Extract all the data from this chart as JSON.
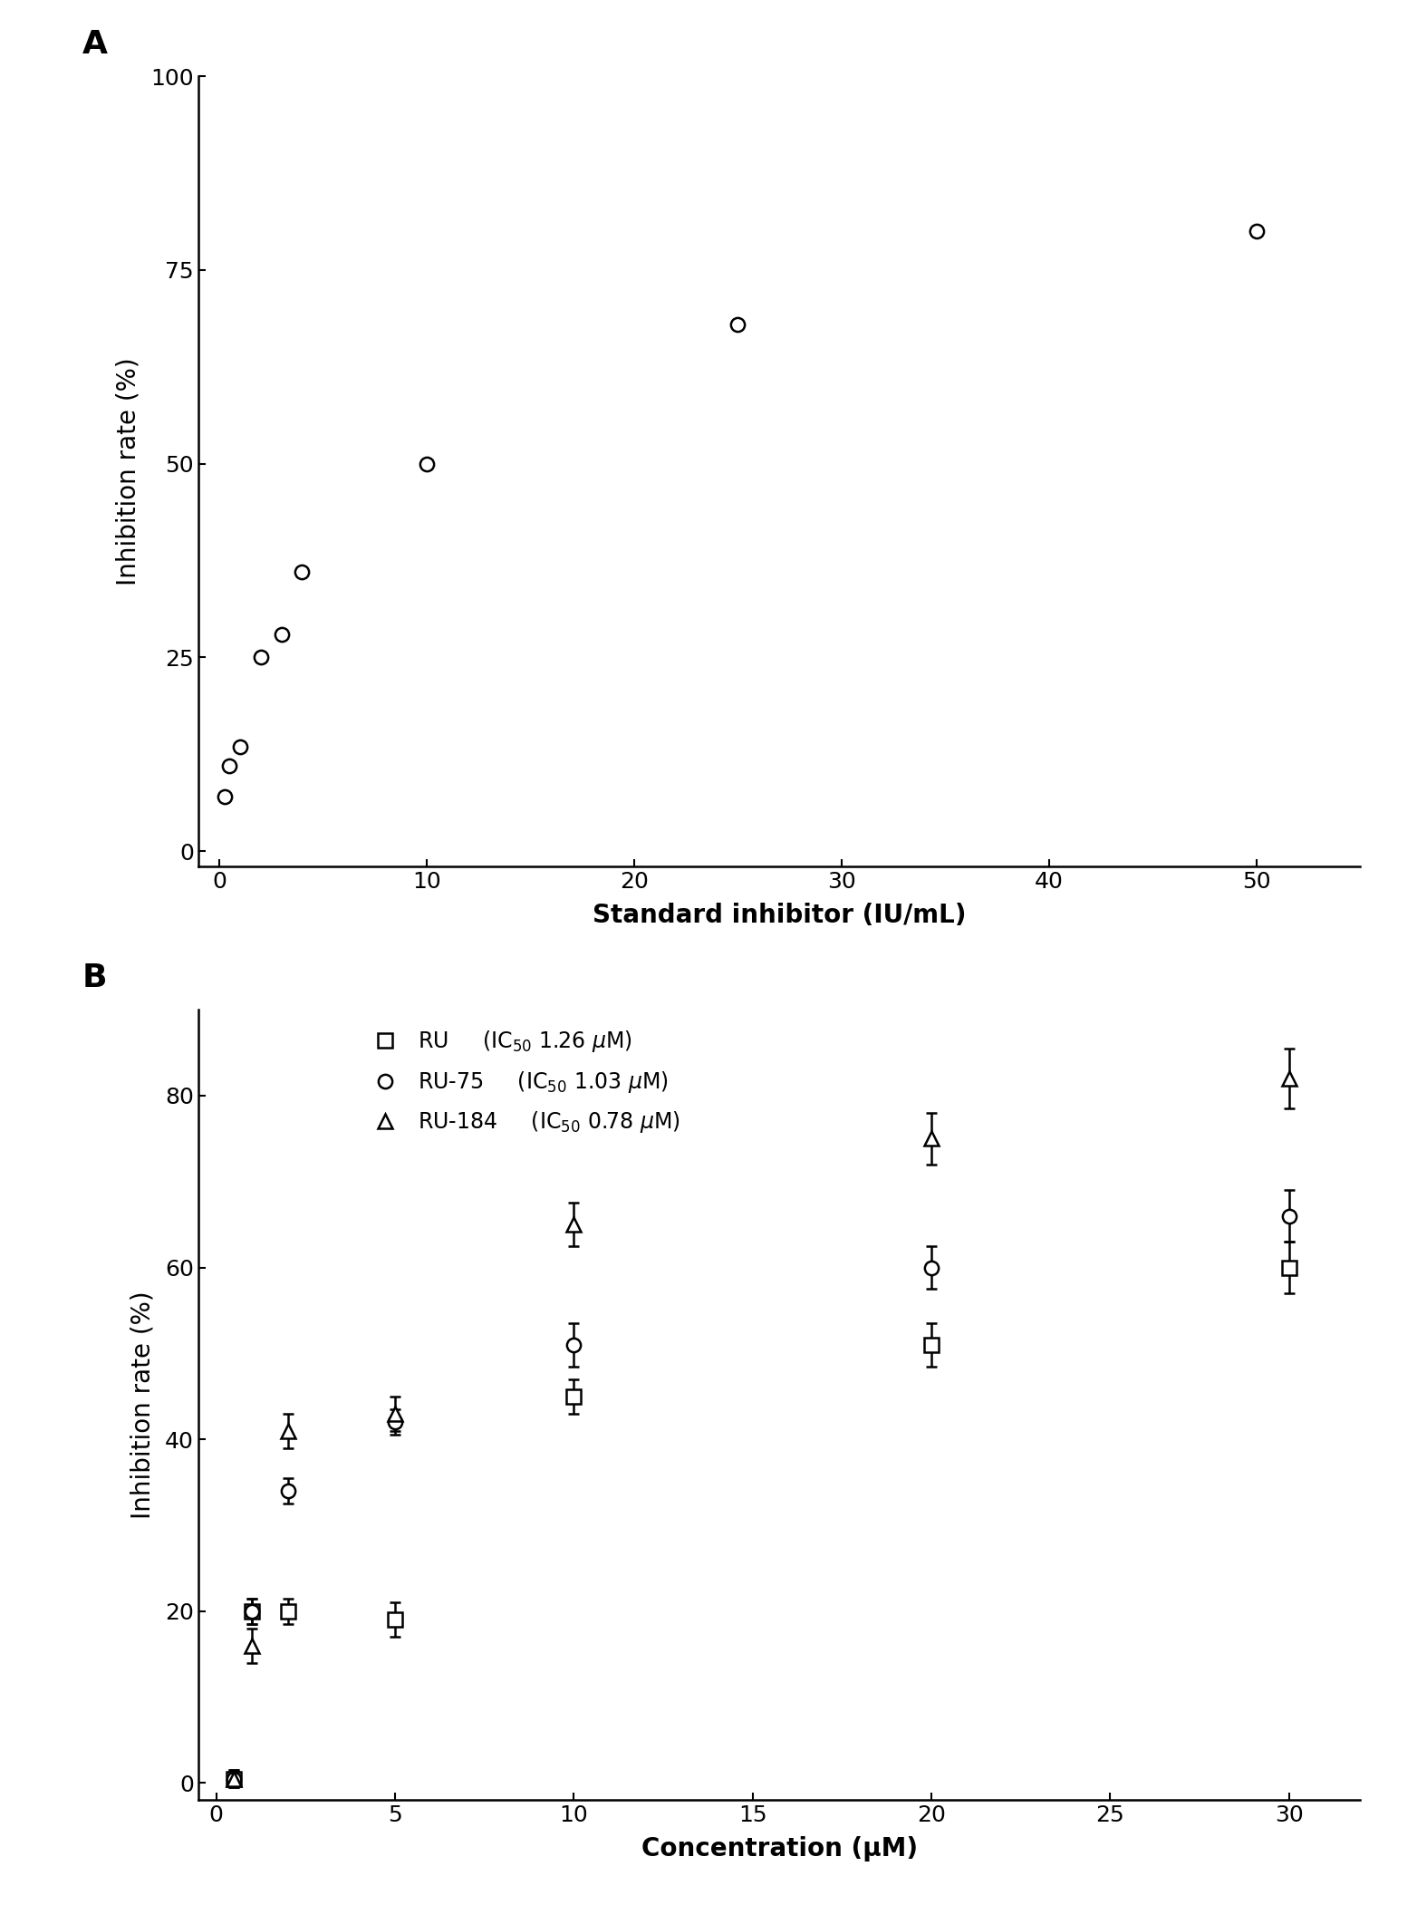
{
  "panel_A": {
    "label": "A",
    "xlabel": "Standard inhibitor (IU/mL)",
    "ylabel": "Inhibition rate (%)",
    "xlim": [
      -1,
      55
    ],
    "ylim": [
      -2,
      100
    ],
    "xticks": [
      0,
      10,
      20,
      30,
      40,
      50
    ],
    "yticks": [
      0,
      25,
      50,
      75,
      100
    ],
    "data_x": [
      0.25,
      0.5,
      1.0,
      2.0,
      3.0,
      4.0,
      10.0,
      25.0,
      50.0
    ],
    "data_y": [
      7.0,
      11.0,
      13.5,
      25.0,
      28.0,
      36.0,
      50.0,
      68.0,
      80.0
    ]
  },
  "panel_B": {
    "label": "B",
    "xlabel": "Concentration (μM)",
    "ylabel": "Inhibition rate (%)",
    "xlim": [
      -0.5,
      32
    ],
    "ylim": [
      -2,
      90
    ],
    "xticks": [
      0,
      5,
      10,
      15,
      20,
      25,
      30
    ],
    "yticks": [
      0,
      20,
      40,
      60,
      80
    ],
    "series": [
      {
        "name": "RU",
        "marker": "s",
        "x": [
          0.5,
          1.0,
          2.0,
          5.0,
          10.0,
          20.0,
          30.0
        ],
        "y": [
          0.5,
          20.0,
          20.0,
          19.0,
          45.0,
          51.0,
          60.0
        ],
        "yerr": [
          0.8,
          1.5,
          1.5,
          2.0,
          2.0,
          2.5,
          3.0
        ],
        "ic50": 1.26,
        "vmax_init": 90,
        "k_init": 5.0,
        "n_init": 0.5
      },
      {
        "name": "RU-75",
        "marker": "o",
        "x": [
          0.5,
          1.0,
          2.0,
          5.0,
          10.0,
          20.0,
          30.0
        ],
        "y": [
          0.5,
          20.0,
          34.0,
          42.0,
          51.0,
          60.0,
          66.0
        ],
        "yerr": [
          1.0,
          1.5,
          1.5,
          1.5,
          2.5,
          2.5,
          3.0
        ],
        "ic50": 1.03,
        "vmax_init": 90,
        "k_init": 3.0,
        "n_init": 0.6
      },
      {
        "name": "RU-184",
        "marker": "^",
        "x": [
          0.5,
          1.0,
          2.0,
          5.0,
          10.0,
          20.0,
          30.0
        ],
        "y": [
          0.5,
          16.0,
          41.0,
          43.0,
          65.0,
          75.0,
          82.0
        ],
        "yerr": [
          1.0,
          2.0,
          2.0,
          2.0,
          2.5,
          3.0,
          3.5
        ],
        "ic50": 0.78,
        "vmax_init": 95,
        "k_init": 2.0,
        "n_init": 0.7
      }
    ]
  },
  "figure_bg": "#ffffff",
  "line_color": "#000000",
  "marker_facecolor": "#ffffff",
  "marker_edgecolor": "#000000",
  "label_fontsize": 20,
  "tick_fontsize": 18,
  "panel_label_fontsize": 26,
  "legend_fontsize": 17,
  "line_width": 2.2,
  "marker_size": 11,
  "marker_edgewidth": 1.8
}
